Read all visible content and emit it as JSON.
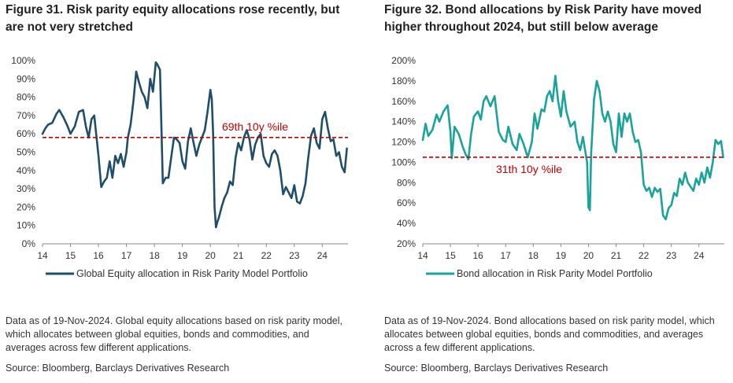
{
  "left": {
    "title": "Figure 31. Risk parity equity allocations rose recently, but are not very stretched",
    "note": "Data as of 19-Nov-2024. Global equity allocations based on risk parity model, which allocates between global equities, bonds and commodities, and averages across few different applications.",
    "source": "Source: Bloomberg, Barclays Derivatives Research"
  },
  "right": {
    "title": "Figure 32. Bond allocations by Risk Parity have moved higher throughout 2024, but still below average",
    "note": "Data as of 19-Nov-2024. Bond allocations based on risk parity model, which allocates between global equities, bonds and commodities, and averages across a few different applications.",
    "source": "Source: Bloomberg, Barclays Derivatives Research"
  },
  "chart_data": [
    {
      "type": "line",
      "color": "#1f4e6b",
      "ylim": [
        0,
        100
      ],
      "yticks": [
        0,
        10,
        20,
        30,
        40,
        50,
        60,
        70,
        80,
        90,
        100
      ],
      "ytick_labels": [
        "0%",
        "10%",
        "20%",
        "30%",
        "40%",
        "50%",
        "60%",
        "70%",
        "80%",
        "90%",
        "100%"
      ],
      "xlim": [
        2014,
        2024.92
      ],
      "xticks": [
        2014,
        2015,
        2016,
        2017,
        2018,
        2019,
        2020,
        2021,
        2022,
        2023,
        2024
      ],
      "xtick_labels": [
        "14",
        "15",
        "16",
        "17",
        "18",
        "19",
        "20",
        "21",
        "22",
        "23",
        "24"
      ],
      "reference_line": {
        "value": 58,
        "label": "69th 10y %ile",
        "color": "#c00000"
      },
      "series": [
        {
          "name": "Global Equity allocation in Risk Parity Model Portfolio",
          "x": [
            2014.0,
            2014.1,
            2014.2,
            2014.35,
            2014.5,
            2014.6,
            2014.75,
            2014.9,
            2015.0,
            2015.15,
            2015.3,
            2015.45,
            2015.55,
            2015.65,
            2015.75,
            2015.85,
            2016.0,
            2016.1,
            2016.2,
            2016.3,
            2016.4,
            2016.5,
            2016.6,
            2016.7,
            2016.8,
            2016.9,
            2017.0,
            2017.05,
            2017.15,
            2017.25,
            2017.35,
            2017.45,
            2017.55,
            2017.65,
            2017.75,
            2017.85,
            2017.95,
            2018.05,
            2018.1,
            2018.2,
            2018.3,
            2018.4,
            2018.5,
            2018.6,
            2018.7,
            2018.8,
            2018.9,
            2019.0,
            2019.1,
            2019.2,
            2019.3,
            2019.4,
            2019.5,
            2019.6,
            2019.7,
            2019.8,
            2019.9,
            2020.0,
            2020.05,
            2020.1,
            2020.15,
            2020.2,
            2020.25,
            2020.3,
            2020.4,
            2020.5,
            2020.6,
            2020.7,
            2020.8,
            2020.9,
            2021.0,
            2021.1,
            2021.2,
            2021.3,
            2021.4,
            2021.5,
            2021.6,
            2021.7,
            2021.8,
            2021.9,
            2022.0,
            2022.1,
            2022.2,
            2022.3,
            2022.4,
            2022.5,
            2022.6,
            2022.7,
            2022.8,
            2022.9,
            2023.0,
            2023.1,
            2023.2,
            2023.3,
            2023.4,
            2023.5,
            2023.6,
            2023.7,
            2023.8,
            2023.9,
            2024.0,
            2024.1,
            2024.2,
            2024.3,
            2024.4,
            2024.5,
            2024.6,
            2024.7,
            2024.8,
            2024.88
          ],
          "y": [
            60,
            63,
            65,
            66,
            71,
            73,
            69,
            64,
            60,
            64,
            72,
            73,
            64,
            58,
            68,
            70,
            48,
            31,
            34,
            36,
            45,
            36,
            48,
            44,
            49,
            42,
            50,
            58,
            65,
            78,
            94,
            88,
            83,
            80,
            74,
            90,
            83,
            99,
            98,
            95,
            33,
            36,
            36,
            47,
            58,
            57,
            55,
            45,
            41,
            56,
            63,
            55,
            48,
            54,
            58,
            62,
            72,
            84,
            79,
            60,
            20,
            9,
            12,
            14,
            20,
            25,
            28,
            34,
            32,
            47,
            55,
            51,
            58,
            62,
            57,
            46,
            54,
            58,
            60,
            48,
            44,
            42,
            49,
            51,
            48,
            40,
            27,
            31,
            28,
            25,
            32,
            23,
            22,
            26,
            33,
            47,
            59,
            63,
            55,
            52,
            68,
            72,
            63,
            56,
            57,
            48,
            50,
            42,
            39,
            52
          ]
        }
      ]
    },
    {
      "type": "line",
      "color": "#1aa39a",
      "ylim": [
        20,
        200
      ],
      "yticks": [
        20,
        40,
        60,
        80,
        100,
        120,
        140,
        160,
        180,
        200
      ],
      "ytick_labels": [
        "20%",
        "40%",
        "60%",
        "80%",
        "100%",
        "120%",
        "140%",
        "160%",
        "180%",
        "200%"
      ],
      "xlim": [
        2014,
        2024.92
      ],
      "xticks": [
        2014,
        2015,
        2016,
        2017,
        2018,
        2019,
        2020,
        2021,
        2022,
        2023,
        2024
      ],
      "xtick_labels": [
        "14",
        "15",
        "16",
        "17",
        "18",
        "19",
        "20",
        "21",
        "22",
        "23",
        "24"
      ],
      "reference_line": {
        "value": 105,
        "label": "31th 10y %ile",
        "color": "#c00000"
      },
      "series": [
        {
          "name": "Bond allocation in Risk Parity Model Portfolio",
          "x": [
            2014.0,
            2014.1,
            2014.2,
            2014.35,
            2014.5,
            2014.6,
            2014.75,
            2014.9,
            2015.0,
            2015.05,
            2015.15,
            2015.3,
            2015.45,
            2015.55,
            2015.65,
            2015.75,
            2015.85,
            2016.0,
            2016.1,
            2016.2,
            2016.3,
            2016.45,
            2016.6,
            2016.75,
            2016.9,
            2017.0,
            2017.1,
            2017.25,
            2017.4,
            2017.5,
            2017.65,
            2017.8,
            2017.95,
            2018.05,
            2018.15,
            2018.3,
            2018.4,
            2018.5,
            2018.6,
            2018.7,
            2018.8,
            2018.9,
            2019.0,
            2019.1,
            2019.2,
            2019.35,
            2019.5,
            2019.6,
            2019.7,
            2019.8,
            2019.95,
            2020.0,
            2020.05,
            2020.1,
            2020.15,
            2020.2,
            2020.3,
            2020.4,
            2020.5,
            2020.6,
            2020.7,
            2020.8,
            2020.9,
            2021.0,
            2021.1,
            2021.2,
            2021.3,
            2021.4,
            2021.5,
            2021.6,
            2021.7,
            2021.8,
            2021.9,
            2022.0,
            2022.1,
            2022.2,
            2022.3,
            2022.4,
            2022.5,
            2022.6,
            2022.7,
            2022.8,
            2022.9,
            2023.0,
            2023.1,
            2023.2,
            2023.3,
            2023.4,
            2023.5,
            2023.6,
            2023.7,
            2023.8,
            2023.9,
            2024.0,
            2024.1,
            2024.2,
            2024.3,
            2024.4,
            2024.5,
            2024.6,
            2024.7,
            2024.8,
            2024.88
          ],
          "y": [
            122,
            138,
            126,
            132,
            147,
            140,
            150,
            156,
            130,
            104,
            135,
            128,
            115,
            108,
            103,
            128,
            145,
            150,
            142,
            160,
            165,
            155,
            165,
            130,
            122,
            120,
            135,
            118,
            112,
            128,
            118,
            105,
            120,
            148,
            133,
            152,
            150,
            165,
            170,
            160,
            185,
            160,
            145,
            170,
            150,
            135,
            140,
            120,
            112,
            125,
            100,
            56,
            53,
            110,
            135,
            162,
            180,
            170,
            148,
            140,
            150,
            140,
            118,
            110,
            148,
            125,
            148,
            140,
            148,
            130,
            120,
            122,
            110,
            78,
            72,
            75,
            66,
            75,
            71,
            74,
            48,
            44,
            55,
            58,
            70,
            67,
            84,
            78,
            90,
            80,
            76,
            72,
            84,
            78,
            90,
            80,
            95,
            85,
            100,
            122,
            118,
            121,
            105
          ]
        }
      ]
    }
  ]
}
